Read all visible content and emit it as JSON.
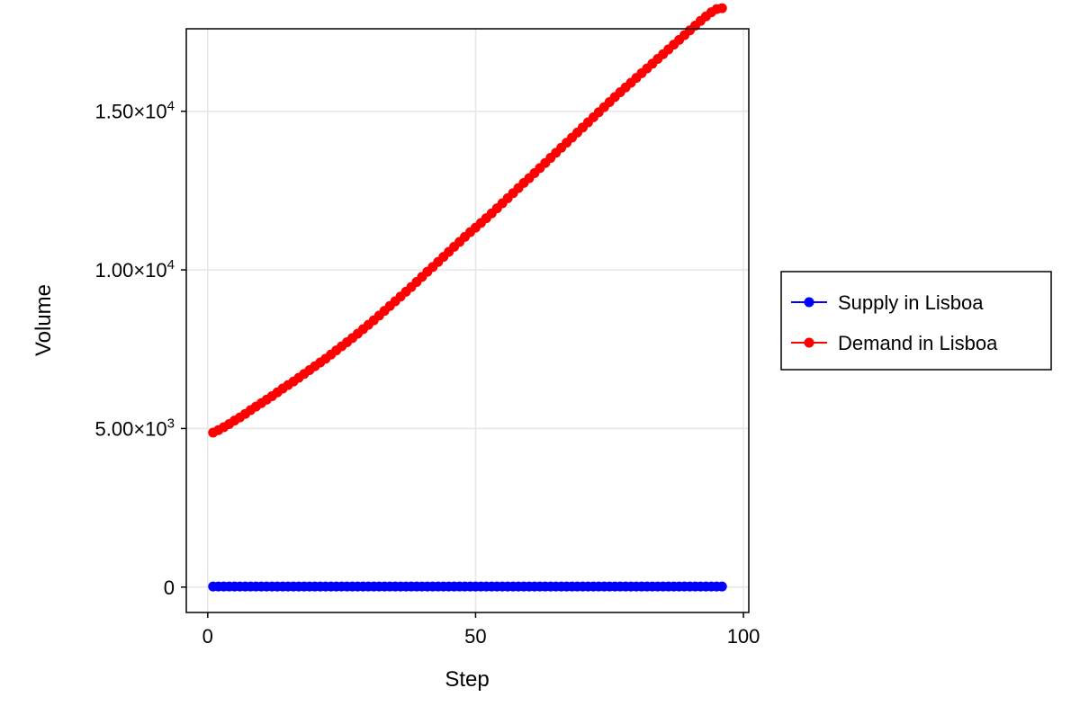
{
  "chart_data": {
    "type": "scatter",
    "title": "",
    "xlabel": "Step",
    "ylabel": "Volume",
    "xlim": [
      -4,
      101
    ],
    "ylim": [
      -800,
      17600
    ],
    "x_ticks": [
      0,
      50,
      100
    ],
    "x_tick_labels": [
      "0",
      "50",
      "100"
    ],
    "y_ticks": [
      0,
      5000,
      10000,
      15000
    ],
    "y_tick_labels": [
      {
        "mantissa": "0",
        "exponent": ""
      },
      {
        "mantissa": "5.00×10",
        "exponent": "3"
      },
      {
        "mantissa": "1.00×10",
        "exponent": "4"
      },
      {
        "mantissa": "1.50×10",
        "exponent": "4"
      }
    ],
    "grid": true,
    "legend_position": "right",
    "legend": [
      "Supply in Lisboa",
      "Demand in Lisboa"
    ],
    "series": [
      {
        "name": "Supply in Lisboa",
        "color": "#0000ff",
        "x": [
          1,
          2,
          3,
          4,
          5,
          6,
          7,
          8,
          9,
          10,
          11,
          12,
          13,
          14,
          15,
          16,
          17,
          18,
          19,
          20,
          21,
          22,
          23,
          24,
          25,
          26,
          27,
          28,
          29,
          30,
          31,
          32,
          33,
          34,
          35,
          36,
          37,
          38,
          39,
          40,
          41,
          42,
          43,
          44,
          45,
          46,
          47,
          48,
          49,
          50,
          51,
          52,
          53,
          54,
          55,
          56,
          57,
          58,
          59,
          60,
          61,
          62,
          63,
          64,
          65,
          66,
          67,
          68,
          69,
          70,
          71,
          72,
          73,
          74,
          75,
          76,
          77,
          78,
          79,
          80,
          81,
          82,
          83,
          84,
          85,
          86,
          87,
          88,
          89,
          90,
          91,
          92,
          93,
          94,
          95,
          96
        ],
        "y": [
          20,
          20,
          20,
          20,
          20,
          20,
          20,
          20,
          20,
          20,
          20,
          20,
          20,
          20,
          20,
          20,
          20,
          20,
          20,
          20,
          20,
          20,
          20,
          20,
          20,
          20,
          20,
          20,
          20,
          20,
          20,
          20,
          20,
          20,
          20,
          20,
          20,
          20,
          20,
          20,
          20,
          20,
          20,
          20,
          20,
          20,
          20,
          20,
          20,
          20,
          20,
          20,
          20,
          20,
          20,
          20,
          20,
          20,
          20,
          20,
          20,
          20,
          20,
          20,
          20,
          20,
          20,
          20,
          20,
          20,
          20,
          20,
          20,
          20,
          20,
          20,
          20,
          20,
          20,
          20,
          20,
          20,
          20,
          20,
          20,
          20,
          20,
          20,
          20,
          20,
          20,
          20,
          20,
          20,
          20,
          20
        ]
      },
      {
        "name": "Demand in Lisboa",
        "color": "#ff0000",
        "x": [
          1,
          2,
          3,
          4,
          5,
          6,
          7,
          8,
          9,
          10,
          11,
          12,
          13,
          14,
          15,
          16,
          17,
          18,
          19,
          20,
          21,
          22,
          23,
          24,
          25,
          26,
          27,
          28,
          29,
          30,
          31,
          32,
          33,
          34,
          35,
          36,
          37,
          38,
          39,
          40,
          41,
          42,
          43,
          44,
          45,
          46,
          47,
          48,
          49,
          50,
          51,
          52,
          53,
          54,
          55,
          56,
          57,
          58,
          59,
          60,
          61,
          62,
          63,
          64,
          65,
          66,
          67,
          68,
          69,
          70,
          71,
          72,
          73,
          74,
          75,
          76,
          77,
          78,
          79,
          80,
          81,
          82,
          83,
          84,
          85,
          86,
          87,
          88,
          89,
          90,
          91,
          92,
          93,
          94,
          95,
          96
        ],
        "y": [
          4870,
          4950,
          5040,
          5140,
          5250,
          5350,
          5460,
          5580,
          5690,
          5800,
          5910,
          6020,
          6140,
          6260,
          6370,
          6480,
          6600,
          6720,
          6840,
          6960,
          7080,
          7200,
          7330,
          7460,
          7590,
          7720,
          7850,
          7990,
          8130,
          8270,
          8410,
          8560,
          8710,
          8860,
          9010,
          9160,
          9310,
          9460,
          9620,
          9780,
          9940,
          10090,
          10250,
          10410,
          10570,
          10730,
          10880,
          11040,
          11190,
          11330,
          11480,
          11630,
          11780,
          11940,
          12100,
          12260,
          12420,
          12580,
          12740,
          12890,
          13050,
          13210,
          13370,
          13530,
          13690,
          13850,
          14010,
          14170,
          14330,
          14490,
          14650,
          14810,
          14970,
          15130,
          15290,
          15450,
          15600,
          15750,
          15900,
          16050,
          16200,
          16350,
          16500,
          16650,
          16800,
          16950,
          17100,
          17250,
          17400,
          17550,
          17700,
          17850,
          17990,
          18120,
          18220,
          18250
        ]
      }
    ]
  }
}
